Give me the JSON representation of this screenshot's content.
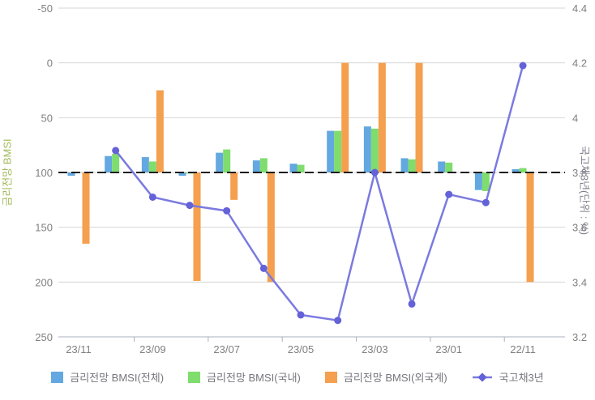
{
  "chart_data": {
    "type": "bar",
    "subtype": "combo-bar-line-dual-axis",
    "title": "",
    "categories": [
      "23/11",
      "23/10",
      "23/09",
      "23/08",
      "23/07",
      "23/06",
      "23/05",
      "23/04",
      "23/03",
      "23/02",
      "23/01",
      "22/12",
      "22/11"
    ],
    "series": [
      {
        "name": "금리전망 BMSI(전체)",
        "type": "bar",
        "axis": "left",
        "color": "#63a8e0",
        "values": [
          103,
          85,
          86,
          103,
          82,
          89,
          92,
          62,
          58,
          87,
          90,
          116,
          97
        ]
      },
      {
        "name": "금리전망 BMSI(국내)",
        "type": "bar",
        "axis": "left",
        "color": "#7edd6d",
        "values": [
          null,
          83,
          90,
          101,
          79,
          87,
          93,
          62,
          60,
          88,
          91,
          117,
          96
        ]
      },
      {
        "name": "금리전망 BMSI(외국계)",
        "type": "bar",
        "axis": "left",
        "color": "#f4a04e",
        "values": [
          165,
          null,
          25,
          199,
          125,
          200,
          null,
          0,
          0,
          0,
          null,
          null,
          200
        ]
      },
      {
        "name": "국고채3년",
        "type": "line",
        "axis": "right",
        "color": "#7b7ae0",
        "marker_color": "#6462d8",
        "values": [
          null,
          3.88,
          3.71,
          3.68,
          3.66,
          3.45,
          3.28,
          3.26,
          3.8,
          3.32,
          3.72,
          3.69,
          4.19
        ]
      }
    ],
    "left_axis": {
      "title": "금리전망 BMSI",
      "title_color": "#a2b85a",
      "tick_labels": [
        "-50",
        "0",
        "50",
        "100",
        "150",
        "200",
        "250"
      ],
      "inverted": true,
      "baseline": 100,
      "range": [
        -50,
        250
      ]
    },
    "right_axis": {
      "title": "국고채3년(단위 : %)",
      "title_color": "#80808c",
      "tick_labels": [
        "4.4",
        "4.2",
        "4",
        "3.8",
        "3.6",
        "3.4",
        "3.2"
      ],
      "unit": "%",
      "range": [
        3.2,
        4.4
      ]
    },
    "x_axis": {
      "labels": [
        "23/11",
        "23/09",
        "23/07",
        "23/05",
        "23/03",
        "23/01",
        "22/11"
      ],
      "label_every": 2
    },
    "grid": true,
    "legend_position": "bottom",
    "colors": {
      "gridline": "#d4d4d4",
      "baseline": "#1c1c1c",
      "axis_line": "#aab0bd",
      "tick_text": "#808080",
      "legend_text": "#76757d"
    }
  }
}
